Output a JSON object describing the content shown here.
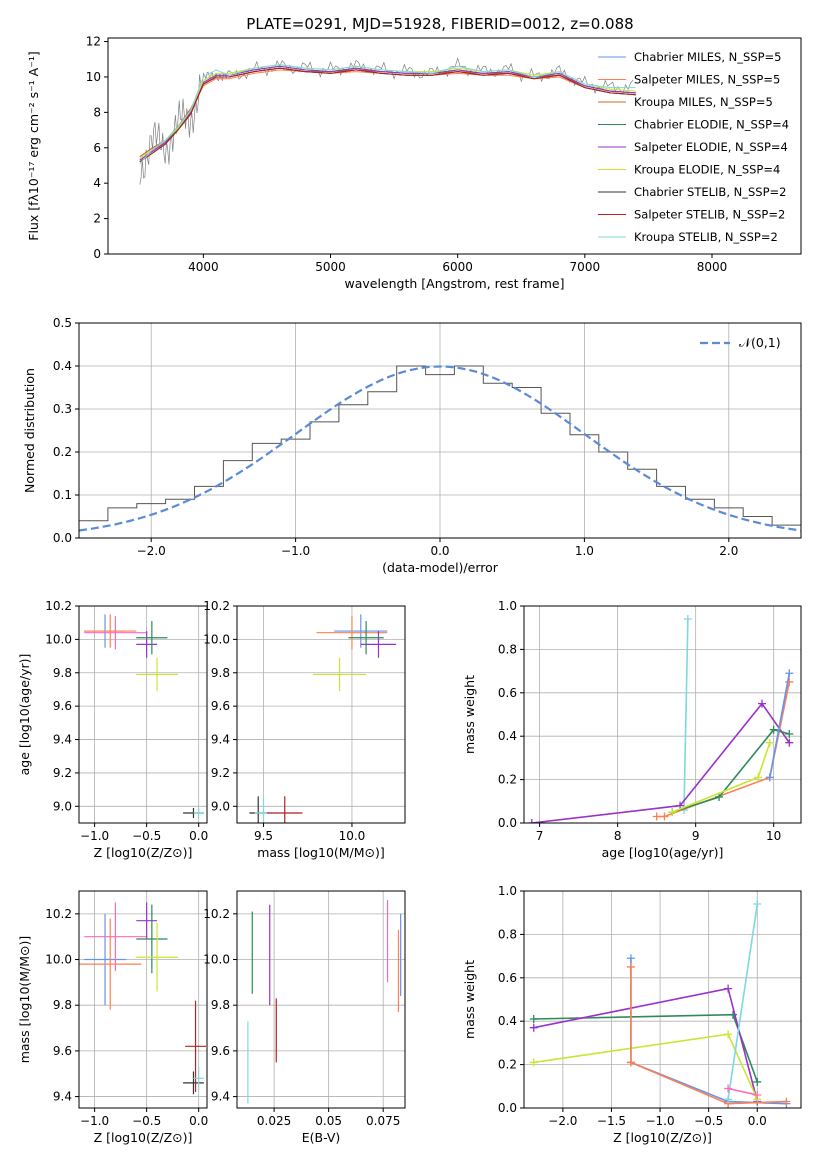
{
  "figure_title": "PLATE=0291, MJD=51928, FIBERID=0012, z=0.088",
  "chart_data": [
    {
      "id": "spectrum",
      "type": "line",
      "title": "PLATE=0291, MJD=51928, FIBERID=0012, z=0.088",
      "xlabel": "wavelength [Angstrom, rest frame]",
      "ylabel": "Flux [fλ10⁻¹⁷ erg cm⁻² s⁻¹ A⁻¹]",
      "xlim": [
        3250,
        8700
      ],
      "ylim": [
        0,
        12.2
      ],
      "xticks": [
        4000,
        5000,
        6000,
        7000,
        8000
      ],
      "yticks": [
        0,
        2,
        4,
        6,
        8,
        10,
        12
      ],
      "grid": false,
      "legend_position": "right",
      "data_wavelength": [
        3500,
        3600,
        3700,
        3800,
        3900,
        4000,
        4100,
        4200,
        4400,
        4600,
        4800,
        5000,
        5200,
        5400,
        5600,
        5800,
        6000,
        6200,
        6400,
        6600,
        6800,
        7000,
        7200,
        7400
      ],
      "data_flux": [
        5.2,
        6.0,
        6.4,
        7.0,
        8.0,
        9.8,
        10.2,
        10.0,
        10.4,
        10.6,
        10.5,
        10.4,
        10.6,
        10.4,
        10.3,
        10.2,
        10.6,
        10.3,
        10.4,
        10.0,
        10.3,
        9.6,
        9.4,
        9.5
      ],
      "series": [
        {
          "name": "Chabrier MILES, N_SSP=5",
          "color": "#6495ed",
          "values": [
            5.5,
            6.0,
            6.4,
            7.2,
            8.2,
            9.6,
            10.0,
            10.0,
            10.3,
            10.5,
            10.3,
            10.3,
            10.4,
            10.3,
            10.2,
            10.2,
            10.3,
            10.2,
            10.2,
            10.0,
            10.1,
            9.5,
            9.2,
            9.1
          ]
        },
        {
          "name": "Salpeter MILES, N_SSP=5",
          "color": "#ff7f50",
          "values": [
            5.4,
            5.9,
            6.3,
            7.1,
            8.1,
            9.5,
            9.9,
            9.9,
            10.2,
            10.4,
            10.3,
            10.2,
            10.3,
            10.2,
            10.1,
            10.1,
            10.2,
            10.1,
            10.1,
            9.9,
            10.0,
            9.4,
            9.1,
            9.0
          ]
        },
        {
          "name": "Kroupa MILES, N_SSP=5",
          "color": "#d2691e",
          "values": [
            5.5,
            6.0,
            6.4,
            7.2,
            8.2,
            9.6,
            10.0,
            10.0,
            10.3,
            10.5,
            10.3,
            10.3,
            10.4,
            10.3,
            10.2,
            10.2,
            10.3,
            10.2,
            10.2,
            10.0,
            10.1,
            9.5,
            9.2,
            9.1
          ]
        },
        {
          "name": "Chabrier ELODIE, N_SSP=4",
          "color": "#2e8b57",
          "values": [
            5.3,
            5.8,
            6.3,
            7.1,
            8.0,
            9.7,
            10.1,
            10.1,
            10.4,
            10.6,
            10.4,
            10.3,
            10.5,
            10.3,
            10.2,
            10.2,
            10.4,
            10.2,
            10.3,
            10.0,
            10.2,
            9.5,
            9.2,
            9.1
          ]
        },
        {
          "name": "Salpeter ELODIE, N_SSP=4",
          "color": "#9932cc",
          "values": [
            5.3,
            5.8,
            6.3,
            7.0,
            8.0,
            9.7,
            10.1,
            10.1,
            10.4,
            10.6,
            10.4,
            10.3,
            10.5,
            10.3,
            10.2,
            10.2,
            10.4,
            10.2,
            10.3,
            10.0,
            10.2,
            9.5,
            9.2,
            9.1
          ]
        },
        {
          "name": "Kroupa ELODIE, N_SSP=4",
          "color": "#c8e632",
          "values": [
            5.4,
            5.9,
            6.4,
            7.1,
            8.1,
            9.8,
            10.2,
            10.2,
            10.5,
            10.7,
            10.5,
            10.4,
            10.6,
            10.4,
            10.3,
            10.3,
            10.5,
            10.3,
            10.4,
            10.1,
            10.3,
            9.6,
            9.3,
            9.2
          ]
        },
        {
          "name": "Chabrier STELIB, N_SSP=2",
          "color": "#333333",
          "values": [
            5.2,
            5.7,
            6.2,
            7.0,
            7.9,
            9.6,
            10.0,
            10.0,
            10.3,
            10.5,
            10.3,
            10.2,
            10.4,
            10.2,
            10.1,
            10.1,
            10.3,
            10.1,
            10.2,
            9.9,
            10.1,
            9.4,
            9.1,
            9.0
          ]
        },
        {
          "name": "Salpeter STELIB, N_SSP=2",
          "color": "#b22222",
          "values": [
            5.2,
            5.7,
            6.2,
            7.0,
            7.9,
            9.6,
            10.0,
            10.0,
            10.3,
            10.5,
            10.3,
            10.2,
            10.4,
            10.2,
            10.1,
            10.1,
            10.3,
            10.1,
            10.2,
            9.9,
            10.1,
            9.4,
            9.1,
            9.0
          ]
        },
        {
          "name": "Kroupa STELIB, N_SSP=2",
          "color": "#7fd8dc",
          "values": [
            5.1,
            5.9,
            6.4,
            7.2,
            8.1,
            10.0,
            10.4,
            10.1,
            10.5,
            10.7,
            10.5,
            10.4,
            10.6,
            10.4,
            10.3,
            10.2,
            10.6,
            10.3,
            10.4,
            10.0,
            10.3,
            9.6,
            9.4,
            9.4
          ]
        }
      ]
    },
    {
      "id": "residuals",
      "type": "histogram",
      "xlabel": "(data-model)/error",
      "ylabel": "Normed distribution",
      "xlim": [
        -2.5,
        2.5
      ],
      "ylim": [
        0,
        0.5
      ],
      "xticks": [
        -2,
        -1,
        0,
        1,
        2
      ],
      "yticks": [
        0.0,
        0.1,
        0.2,
        0.3,
        0.4,
        0.5
      ],
      "grid": true,
      "legend_position": "top-right",
      "reference_curve": "𝒩(0,1)",
      "bin_centers": [
        -2.4,
        -2.2,
        -2.0,
        -1.8,
        -1.6,
        -1.4,
        -1.2,
        -1.0,
        -0.8,
        -0.6,
        -0.4,
        -0.2,
        0.0,
        0.2,
        0.4,
        0.6,
        0.8,
        1.0,
        1.2,
        1.4,
        1.6,
        1.8,
        2.0,
        2.2,
        2.4
      ],
      "values": [
        0.04,
        0.07,
        0.08,
        0.09,
        0.12,
        0.18,
        0.22,
        0.23,
        0.27,
        0.31,
        0.34,
        0.4,
        0.38,
        0.4,
        0.36,
        0.35,
        0.29,
        0.24,
        0.2,
        0.16,
        0.12,
        0.09,
        0.07,
        0.05,
        0.03
      ]
    },
    {
      "id": "age-vs-Z",
      "type": "errorbar",
      "xlabel": "Z [log10(Z/Z⊙)]",
      "ylabel": "age  [log10(age/yr)]",
      "xlim": [
        -1.15,
        0.08
      ],
      "ylim": [
        8.9,
        10.2
      ],
      "xticks": [
        -1.0,
        -0.5,
        0.0
      ],
      "yticks": [
        9.0,
        9.2,
        9.4,
        9.6,
        9.8,
        10.0,
        10.2
      ],
      "grid": true,
      "points": [
        {
          "x": -0.9,
          "y": 10.05,
          "xerr": 0.2,
          "yerr": 0.1,
          "color": "#6495ed"
        },
        {
          "x": -0.85,
          "y": 10.05,
          "xerr": 0.25,
          "yerr": 0.1,
          "color": "#ff7f50"
        },
        {
          "x": -0.8,
          "y": 10.04,
          "xerr": 0.3,
          "yerr": 0.1,
          "color": "#ff69b4"
        },
        {
          "x": -0.5,
          "y": 9.97,
          "xerr": 0.1,
          "yerr": 0.08,
          "color": "#9932cc"
        },
        {
          "x": -0.45,
          "y": 10.01,
          "xerr": 0.15,
          "yerr": 0.1,
          "color": "#2e8b57"
        },
        {
          "x": -0.4,
          "y": 9.79,
          "xerr": 0.2,
          "yerr": 0.1,
          "color": "#c8e632"
        },
        {
          "x": -0.05,
          "y": 8.96,
          "xerr": 0.1,
          "yerr": 0.03,
          "color": "#333333"
        },
        {
          "x": 0.0,
          "y": 8.96,
          "xerr": 0.05,
          "yerr": 0.03,
          "color": "#7fd8dc"
        }
      ]
    },
    {
      "id": "age-vs-mass",
      "type": "errorbar",
      "xlabel": "mass [log10(M/M⊙)]",
      "ylabel": "",
      "xlim": [
        9.35,
        10.3
      ],
      "ylim": [
        8.9,
        10.2
      ],
      "xticks": [
        9.5,
        10.0
      ],
      "yticks": [
        9.0,
        9.2,
        9.4,
        9.6,
        9.8,
        10.0,
        10.2
      ],
      "grid": true,
      "points": [
        {
          "x": 10.05,
          "y": 10.05,
          "xerr": 0.15,
          "yerr": 0.1,
          "color": "#6495ed"
        },
        {
          "x": 10.0,
          "y": 10.04,
          "xerr": 0.2,
          "yerr": 0.1,
          "color": "#ff7f50"
        },
        {
          "x": 10.15,
          "y": 9.97,
          "xerr": 0.1,
          "yerr": 0.08,
          "color": "#9932cc"
        },
        {
          "x": 10.08,
          "y": 10.01,
          "xerr": 0.1,
          "yerr": 0.1,
          "color": "#2e8b57"
        },
        {
          "x": 9.93,
          "y": 9.79,
          "xerr": 0.15,
          "yerr": 0.1,
          "color": "#c8e632"
        },
        {
          "x": 9.47,
          "y": 8.96,
          "xerr": 0.05,
          "yerr": 0.1,
          "color": "#333333"
        },
        {
          "x": 9.5,
          "y": 8.96,
          "xerr": 0.05,
          "yerr": 0.1,
          "color": "#7fd8dc"
        },
        {
          "x": 9.62,
          "y": 8.96,
          "xerr": 0.1,
          "yerr": 0.1,
          "color": "#b22222"
        }
      ]
    },
    {
      "id": "massweight-vs-age",
      "type": "line",
      "xlabel": "age  [log10(age/yr)]",
      "ylabel": "mass weight",
      "xlim": [
        6.8,
        10.35
      ],
      "ylim": [
        0,
        1.0
      ],
      "xticks": [
        7,
        8,
        9,
        10
      ],
      "yticks": [
        0.0,
        0.2,
        0.4,
        0.6,
        0.8,
        1.0
      ],
      "grid": true,
      "series": [
        {
          "color": "#7fd8dc",
          "x": [
            8.85,
            8.9
          ],
          "y": [
            0.06,
            0.94
          ]
        },
        {
          "color": "#9932cc",
          "x": [
            6.9,
            8.8,
            9.85,
            10.2
          ],
          "y": [
            0.0,
            0.08,
            0.55,
            0.37
          ]
        },
        {
          "color": "#ff7f50",
          "x": [
            8.5,
            8.6,
            9.95,
            10.2
          ],
          "y": [
            0.03,
            0.03,
            0.21,
            0.65
          ]
        },
        {
          "color": "#2e8b57",
          "x": [
            8.7,
            9.3,
            10.0,
            10.2
          ],
          "y": [
            0.05,
            0.12,
            0.43,
            0.41
          ]
        },
        {
          "color": "#c8e632",
          "x": [
            8.7,
            9.8,
            9.95
          ],
          "y": [
            0.05,
            0.21,
            0.37
          ]
        },
        {
          "color": "#6495ed",
          "x": [
            9.95,
            10.2
          ],
          "y": [
            0.21,
            0.69
          ]
        }
      ]
    },
    {
      "id": "mass-vs-Z",
      "type": "errorbar",
      "xlabel": "Z [log10(Z/Z⊙)]",
      "ylabel": "mass [log10(M/M⊙)]",
      "xlim": [
        -1.15,
        0.08
      ],
      "ylim": [
        9.35,
        10.3
      ],
      "xticks": [
        -1.0,
        -0.5,
        0.0
      ],
      "yticks": [
        9.4,
        9.6,
        9.8,
        10.0,
        10.2
      ],
      "grid": true,
      "points": [
        {
          "x": -0.9,
          "y": 10.0,
          "xerr": 0.2,
          "yerr": 0.2,
          "color": "#6495ed"
        },
        {
          "x": -0.85,
          "y": 9.98,
          "xerr": 0.3,
          "yerr": 0.2,
          "color": "#ff7f50"
        },
        {
          "x": -0.8,
          "y": 10.1,
          "xerr": 0.3,
          "yerr": 0.15,
          "color": "#ff69b4"
        },
        {
          "x": -0.5,
          "y": 10.17,
          "xerr": 0.1,
          "yerr": 0.08,
          "color": "#9932cc"
        },
        {
          "x": -0.45,
          "y": 10.09,
          "xerr": 0.15,
          "yerr": 0.15,
          "color": "#2e8b57"
        },
        {
          "x": -0.4,
          "y": 10.01,
          "xerr": 0.2,
          "yerr": 0.15,
          "color": "#c8e632"
        },
        {
          "x": -0.05,
          "y": 9.46,
          "xerr": 0.1,
          "yerr": 0.05,
          "color": "#333333"
        },
        {
          "x": -0.03,
          "y": 9.62,
          "xerr": 0.1,
          "yerr": 0.2,
          "color": "#b22222"
        },
        {
          "x": 0.0,
          "y": 9.48,
          "xerr": 0.05,
          "yerr": 0.05,
          "color": "#7fd8dc"
        }
      ]
    },
    {
      "id": "mass-vs-EBV",
      "type": "errorbar",
      "xlabel": "E(B-V)",
      "ylabel": "",
      "xlim": [
        0.008,
        0.085
      ],
      "ylim": [
        9.35,
        10.3
      ],
      "xticks": [
        0.025,
        0.05,
        0.075
      ],
      "yticks": [
        9.4,
        9.6,
        9.8,
        10.0,
        10.2
      ],
      "grid": true,
      "points": [
        {
          "x": 0.013,
          "y": 9.55,
          "yerr": 0.18,
          "color": "#7fd8dc"
        },
        {
          "x": 0.015,
          "y": 10.03,
          "yerr": 0.18,
          "color": "#2e8b57"
        },
        {
          "x": 0.023,
          "y": 10.02,
          "yerr": 0.22,
          "color": "#9932cc"
        },
        {
          "x": 0.026,
          "y": 9.69,
          "yerr": 0.14,
          "color": "#b22222"
        },
        {
          "x": 0.077,
          "y": 10.08,
          "yerr": 0.18,
          "color": "#ff69b4"
        },
        {
          "x": 0.082,
          "y": 9.95,
          "yerr": 0.18,
          "color": "#ff7f50"
        },
        {
          "x": 0.083,
          "y": 10.02,
          "yerr": 0.18,
          "color": "#6495ed"
        }
      ]
    },
    {
      "id": "massweight-vs-Z",
      "type": "line",
      "xlabel": "Z [log10(Z/Z⊙)]",
      "ylabel": "mass weight",
      "xlim": [
        -2.4,
        0.45
      ],
      "ylim": [
        0,
        1.0
      ],
      "xticks": [
        -2.0,
        -1.5,
        -1.0,
        -0.5,
        0.0
      ],
      "yticks": [
        0.0,
        0.2,
        0.4,
        0.6,
        0.8,
        1.0
      ],
      "grid": true,
      "series": [
        {
          "color": "#2e8b57",
          "x": [
            -2.3,
            -0.25,
            0.0
          ],
          "y": [
            0.41,
            0.43,
            0.12
          ]
        },
        {
          "color": "#9932cc",
          "x": [
            -2.3,
            -0.3,
            0.0
          ],
          "y": [
            0.37,
            0.55,
            0.03
          ]
        },
        {
          "color": "#c8e632",
          "x": [
            -2.3,
            -0.3,
            0.0
          ],
          "y": [
            0.21,
            0.34,
            0.04
          ]
        },
        {
          "color": "#6495ed",
          "x": [
            -1.3,
            -1.3,
            -0.3,
            0.3
          ],
          "y": [
            0.69,
            0.21,
            0.03,
            0.02
          ]
        },
        {
          "color": "#ff7f50",
          "x": [
            -1.3,
            -1.3,
            -0.3,
            0.3
          ],
          "y": [
            0.65,
            0.21,
            0.02,
            0.03
          ]
        },
        {
          "color": "#7fd8dc",
          "x": [
            -0.3,
            0.0
          ],
          "y": [
            0.04,
            0.94
          ]
        },
        {
          "color": "#ff69b4",
          "x": [
            -0.3,
            0.0
          ],
          "y": [
            0.09,
            0.06
          ]
        }
      ]
    }
  ]
}
